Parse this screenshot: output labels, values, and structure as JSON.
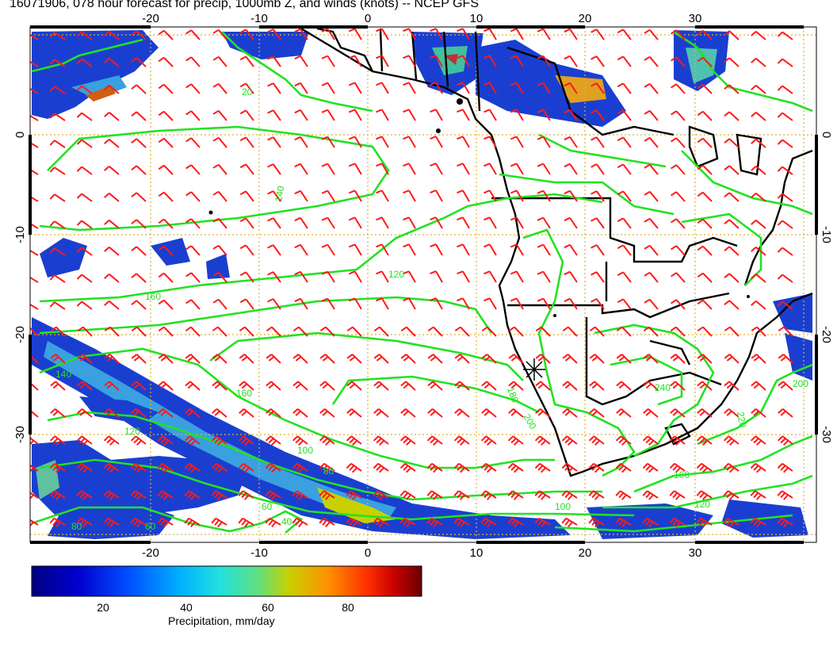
{
  "title": "16071906, 078 hour forecast for precip, 1000mb Z, and winds (knots) -- NCEP GFS",
  "map": {
    "lon_labels": [
      "-20",
      "-10",
      "0",
      "10",
      "20",
      "30"
    ],
    "lat_labels": [
      "0",
      "-10",
      "-20",
      "-30"
    ],
    "contour_labels": [
      "20",
      "140",
      "120",
      "160",
      "180",
      "200",
      "160",
      "140",
      "120",
      "100",
      "80",
      "60",
      "40",
      "200",
      "220",
      "240",
      "160",
      "120",
      "100",
      "80",
      "60"
    ],
    "colors": {
      "contour": "#22e222",
      "barb": "#ff1a1a",
      "land": "#000000",
      "grid": "#e0b030"
    }
  },
  "colorbar": {
    "label": "Precipitation, mm/day",
    "ticks": [
      "20",
      "40",
      "60",
      "80"
    ],
    "colors": [
      "#00007f",
      "#0000d0",
      "#0050ff",
      "#00b0ff",
      "#20e0e0",
      "#60e080",
      "#c8d000",
      "#ff9000",
      "#ff3000",
      "#c80000",
      "#6a0000"
    ]
  }
}
